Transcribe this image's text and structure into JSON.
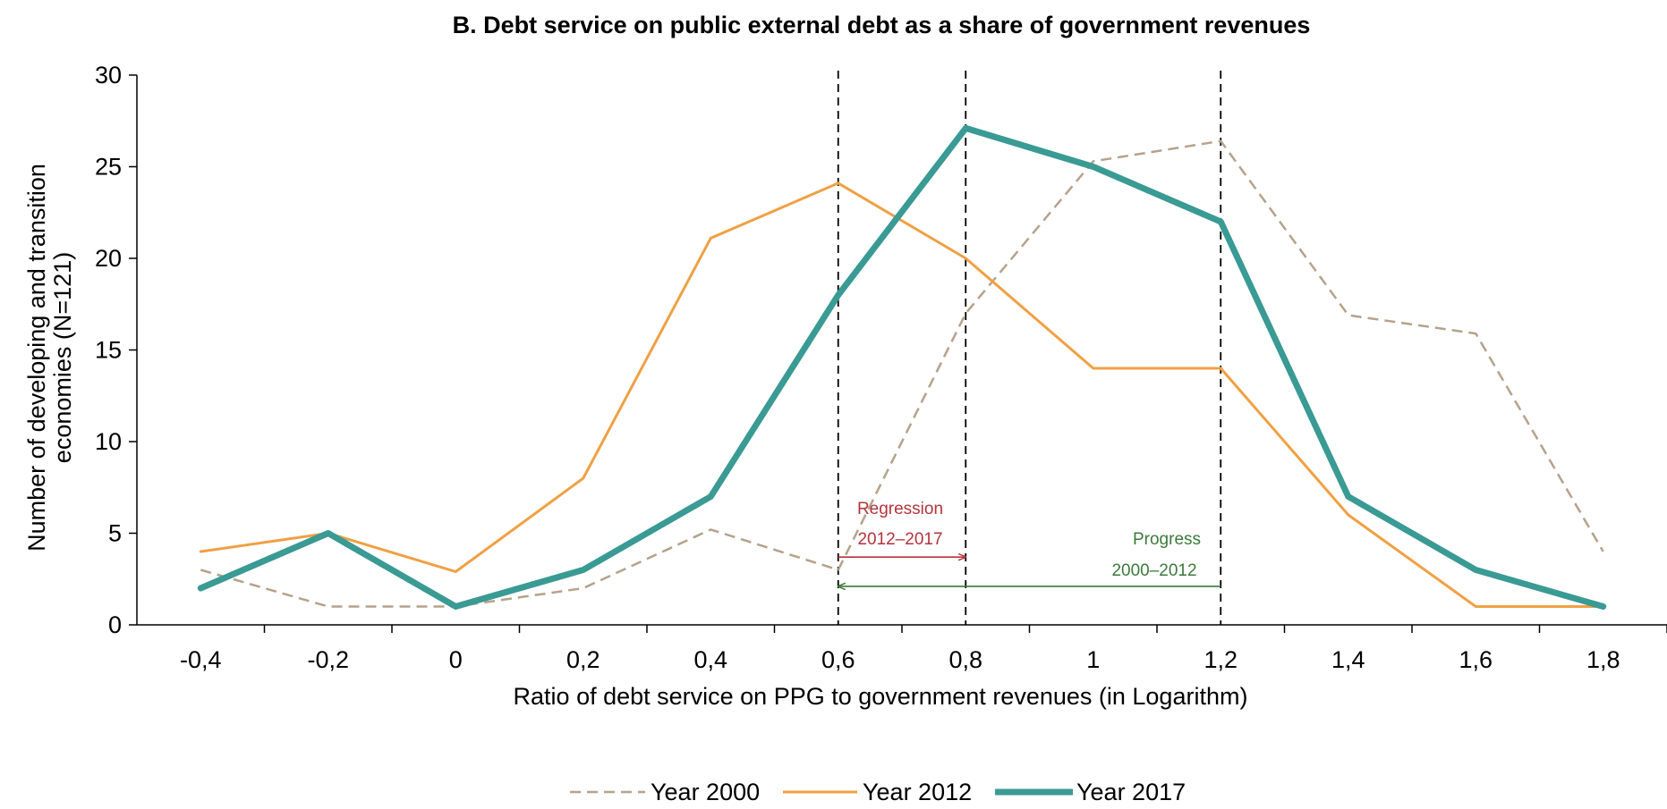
{
  "chart_data": {
    "type": "line",
    "title": "B. Debt service on public external debt as a share of government revenues",
    "xlabel": "Ratio of debt service on PPG to government revenues (in Logarithm)",
    "ylabel_lines": [
      "Number of developing  and transition",
      "economies  (N=121)"
    ],
    "x": [
      -0.4,
      -0.2,
      0,
      0.2,
      0.4,
      0.6,
      0.8,
      1.0,
      1.2,
      1.4,
      1.6,
      1.8
    ],
    "x_tick_labels": [
      "-0,4",
      "-0,2",
      "0",
      "0,2",
      "0,4",
      "0,6",
      "0,8",
      "1",
      "1,2",
      "1,4",
      "1,6",
      "1,8"
    ],
    "xlim": [
      -0.5,
      1.9
    ],
    "ylim": [
      0,
      30
    ],
    "y_ticks": [
      0,
      5,
      10,
      15,
      20,
      25,
      30
    ],
    "grid": false,
    "legend_position": "bottom-center",
    "series": [
      {
        "name": "Year 2000",
        "values": [
          3,
          1,
          1,
          2,
          5.2,
          3,
          17,
          25.3,
          26.4,
          16.9,
          15.9,
          4
        ],
        "color": "#b5a28a",
        "style": "dashed",
        "width": 2.5
      },
      {
        "name": "Year 2012",
        "values": [
          4,
          5,
          2.9,
          8,
          21.1,
          24.1,
          20,
          14,
          14,
          6,
          1,
          1
        ],
        "color": "#f0a044",
        "style": "solid",
        "width": 3
      },
      {
        "name": "Year 2017",
        "values": [
          2,
          5,
          1,
          3,
          7,
          18,
          27.1,
          25,
          22,
          7,
          3,
          1
        ],
        "color": "#3a9a94",
        "style": "solid",
        "width": 7
      }
    ],
    "reference_lines_x": [
      0.6,
      0.8,
      1.2
    ],
    "annotations": [
      {
        "lines": [
          "Regression",
          "2012–2017"
        ],
        "color": "#b3343c",
        "arrow_from": 0.6,
        "arrow_to": 0.8,
        "arrow_y": 3.7
      },
      {
        "lines": [
          "Progress",
          "2000–2012"
        ],
        "color": "#3c7a3c",
        "arrow_from": 1.2,
        "arrow_to": 0.6,
        "arrow_y": 2.1
      }
    ]
  }
}
